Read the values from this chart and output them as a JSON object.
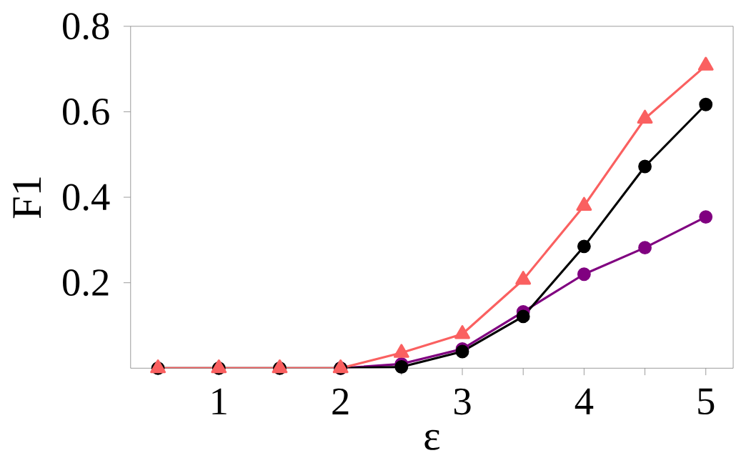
{
  "chart_data": {
    "type": "line",
    "xlabel": "ε",
    "ylabel": "F1",
    "x": [
      0.5,
      1,
      1.5,
      2,
      2.5,
      3,
      3.5,
      4,
      4.5,
      5
    ],
    "series": [
      {
        "color": "#800080",
        "marker": "circle",
        "values": [
          null,
          null,
          null,
          0,
          0.01,
          0.045,
          0.132,
          0.22,
          0.282,
          0.354
        ]
      },
      {
        "color": "#000000",
        "marker": "circle",
        "values": [
          0,
          0,
          0,
          0,
          0.003,
          0.039,
          0.121,
          0.285,
          0.472,
          0.617
        ]
      },
      {
        "color": "#fa6060",
        "marker": "triangle",
        "values": [
          0,
          0,
          0,
          0,
          0.036,
          0.08,
          0.207,
          0.38,
          0.584,
          0.708
        ]
      }
    ],
    "xlim": [
      0.275,
      5.225
    ],
    "ylim": [
      0,
      0.8
    ],
    "xticks": [
      {
        "value": 0.5,
        "label": null
      },
      1,
      {
        "value": 1.5,
        "label": null
      },
      2,
      {
        "value": 2.5,
        "label": null
      },
      3,
      {
        "value": 3.5,
        "label": null
      },
      4,
      {
        "value": 4.5,
        "label": null
      },
      5
    ],
    "yticks": [
      0.2,
      0.4,
      0.6,
      0.8
    ],
    "grid": false,
    "line_style": "solid"
  }
}
